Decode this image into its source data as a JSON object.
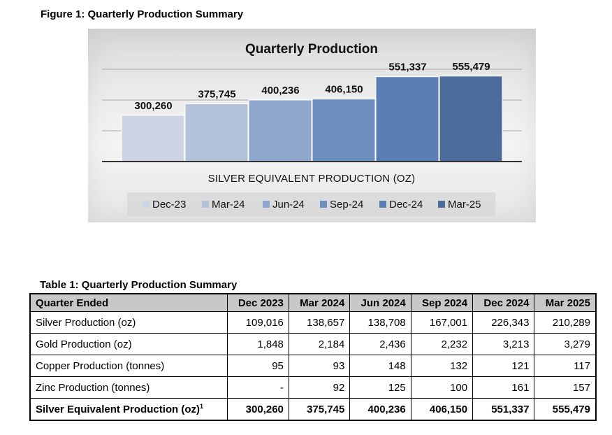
{
  "figure_caption": "Figure 1: Quarterly Production Summary",
  "chart_data": {
    "type": "bar",
    "title": "Quarterly Production",
    "xlabel": "SILVER EQUIVALENT PRODUCTION (OZ)",
    "ylabel": "",
    "ylim": [
      0,
      600000
    ],
    "grid": true,
    "legend_position": "bottom",
    "series": [
      {
        "name": "Dec-23",
        "value": 300260,
        "label": "300,260",
        "color": "#cdd5e4"
      },
      {
        "name": "Mar-24",
        "value": 375745,
        "label": "375,745",
        "color": "#b3c1d9"
      },
      {
        "name": "Jun-24",
        "value": 400236,
        "label": "400,236",
        "color": "#8fa7cc"
      },
      {
        "name": "Sep-24",
        "value": 406150,
        "label": "406,150",
        "color": "#6d8fc0"
      },
      {
        "name": "Dec-24",
        "value": 551337,
        "label": "551,337",
        "color": "#5a7eb3"
      },
      {
        "name": "Mar-25",
        "value": 555479,
        "label": "555,479",
        "color": "#4c6d9c"
      }
    ]
  },
  "table": {
    "caption": "Table 1: Quarterly Production Summary",
    "headers": [
      "Quarter Ended",
      "Dec 2023",
      "Mar 2024",
      "Jun 2024",
      "Sep 2024",
      "Dec 2024",
      "Mar 2025"
    ],
    "rows": [
      {
        "label": "Silver Production (oz)",
        "values": [
          "109,016",
          "138,657",
          "138,708",
          "167,001",
          "226,343",
          "210,289"
        ]
      },
      {
        "label": "Gold Production (oz)",
        "values": [
          "1,848",
          "2,184",
          "2,436",
          "2,232",
          "3,213",
          "3,279"
        ]
      },
      {
        "label": "Copper Production (tonnes)",
        "values": [
          "95",
          "93",
          "148",
          "132",
          "121",
          "117"
        ]
      },
      {
        "label": "Zinc Production (tonnes)",
        "values": [
          "-",
          "92",
          "125",
          "100",
          "161",
          "157"
        ]
      }
    ],
    "total": {
      "label": "Silver Equivalent Production (oz)",
      "footnote": "1",
      "values": [
        "300,260",
        "375,745",
        "400,236",
        "406,150",
        "551,337",
        "555,479"
      ]
    }
  }
}
